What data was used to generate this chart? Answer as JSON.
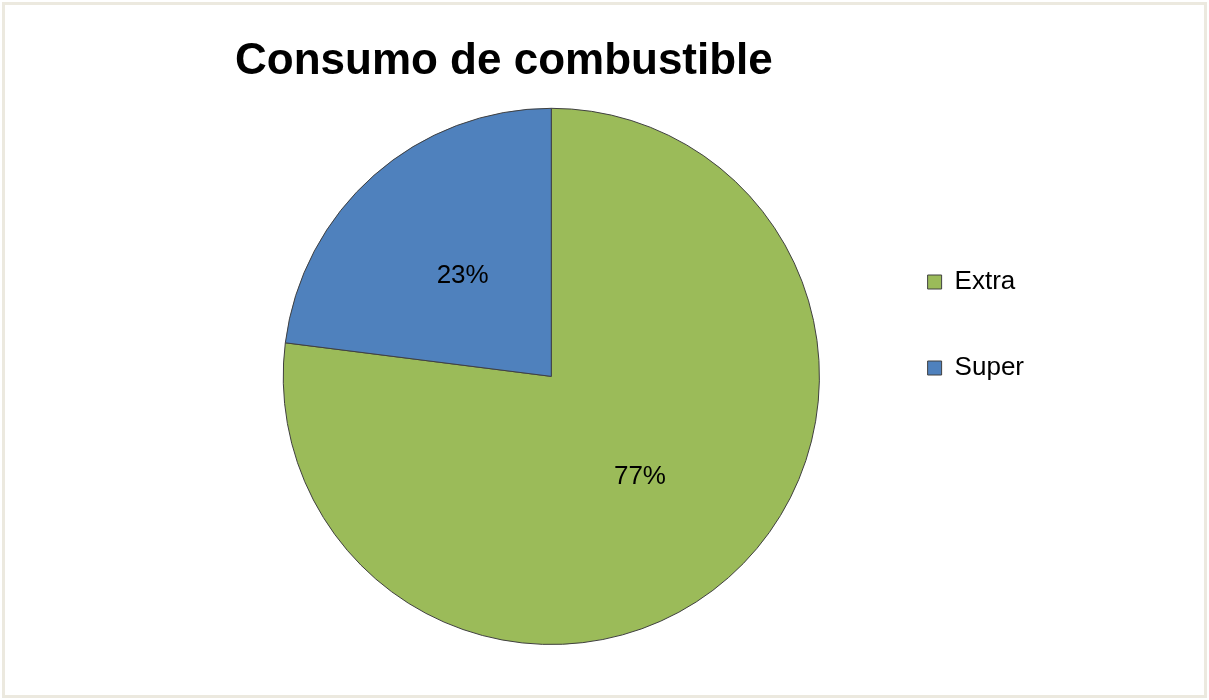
{
  "chart_data": {
    "type": "pie",
    "title": "Consumo de combustible",
    "categories": [
      "Extra",
      "Super"
    ],
    "values": [
      77,
      23
    ],
    "colors": [
      "#9bbb59",
      "#4f81bd"
    ],
    "value_labels": [
      "77%",
      "23%"
    ],
    "legend": "right"
  }
}
